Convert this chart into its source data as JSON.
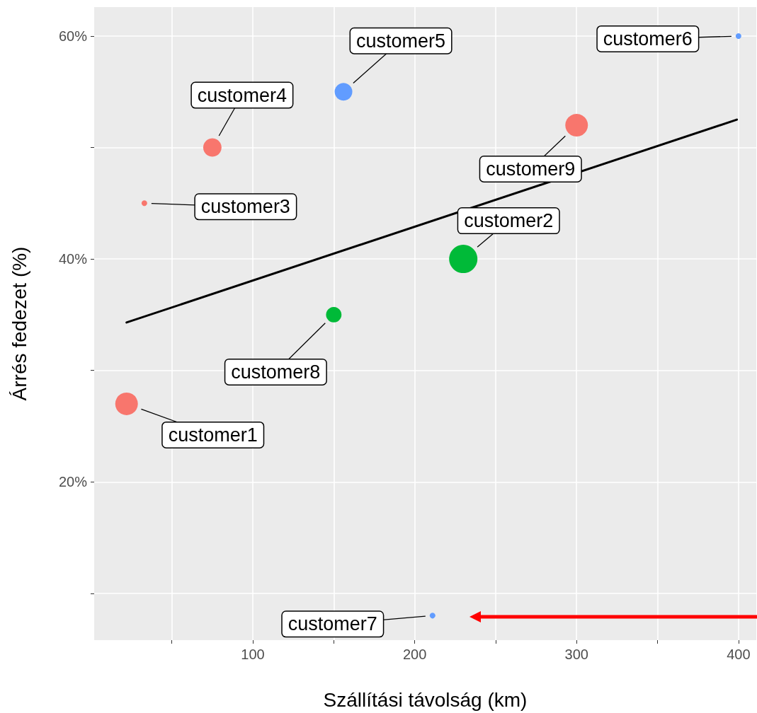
{
  "chart_data": {
    "type": "bubble",
    "xlabel": "Szállítási távolság (km)",
    "ylabel": "Árrés fedezet (%)",
    "xlim": [
      2,
      411
    ],
    "ylim": [
      5.8,
      62.6
    ],
    "xticks": [
      {
        "value": 50,
        "label": null
      },
      100,
      {
        "value": 150,
        "label": null
      },
      200,
      {
        "value": 250,
        "label": null
      },
      300,
      {
        "value": 350,
        "label": null
      },
      400
    ],
    "yticks": [
      {
        "value": 10,
        "label": null
      },
      {
        "value": 20,
        "label": "20%"
      },
      {
        "value": 30,
        "label": null
      },
      {
        "value": 40,
        "label": "40%"
      },
      {
        "value": 50,
        "label": null
      },
      {
        "value": 60,
        "label": "60%"
      }
    ],
    "grid": true,
    "series": [
      {
        "type": "bubble",
        "x": [
          22,
          230,
          33,
          75,
          156,
          400,
          211,
          150,
          300
        ],
        "values": [
          27,
          40,
          45,
          50,
          55,
          60,
          8,
          35,
          52
        ],
        "sizes": [
          0.64,
          1,
          0.04,
          0.42,
          0.39,
          0.04,
          0.04,
          0.3,
          0.64
        ],
        "colors": [
          "#f8766d",
          "#00ba38",
          "#f8766d",
          "#f8766d",
          "#619cff",
          "#619cff",
          "#619cff",
          "#00ba38",
          "#f8766d"
        ]
      },
      {
        "type": "line",
        "x": [
          22,
          399
        ],
        "values": [
          34.3,
          52.5
        ],
        "color": "#000000",
        "line_style": "solid",
        "marker": "none"
      }
    ],
    "annotations": [
      {
        "text": "customer1",
        "x": 22,
        "y": 27
      },
      {
        "text": "customer2",
        "x": 230,
        "y": 40
      },
      {
        "text": "customer3",
        "x": 33,
        "y": 45
      },
      {
        "text": "customer4",
        "x": 75,
        "y": 50
      },
      {
        "text": "customer5",
        "x": 156,
        "y": 55
      },
      {
        "text": "customer6",
        "x": 400,
        "y": 60
      },
      {
        "text": "customer7",
        "x": 211,
        "y": 8
      },
      {
        "text": "customer8",
        "x": 150,
        "y": 35
      },
      {
        "text": "customer9",
        "x": 300,
        "y": 52
      }
    ]
  }
}
